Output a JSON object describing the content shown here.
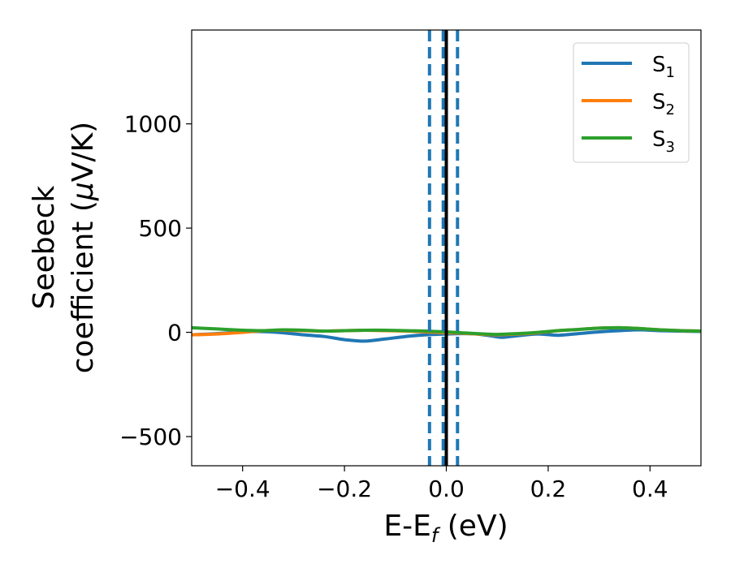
{
  "chart_data": {
    "type": "line",
    "title": "",
    "xlabel": {
      "main": "E-E",
      "sub": "f",
      "suffix": " (eV)"
    },
    "ylabel": {
      "line1": "Seebeck",
      "line2_prefix": "coefficient  (",
      "mu": "μ",
      "line2_suffix": "V/K)"
    },
    "xlim": [
      -0.5,
      0.5
    ],
    "ylim": [
      -640,
      1450
    ],
    "xticks": [
      {
        "value": -0.4,
        "label": "−0.4"
      },
      {
        "value": -0.2,
        "label": "−0.2"
      },
      {
        "value": 0.0,
        "label": "0.0"
      },
      {
        "value": 0.2,
        "label": "0.2"
      },
      {
        "value": 0.4,
        "label": "0.4"
      }
    ],
    "yticks": [
      {
        "value": -500,
        "label": "−500"
      },
      {
        "value": 0,
        "label": "0"
      },
      {
        "value": 500,
        "label": "500"
      },
      {
        "value": 1000,
        "label": "1000"
      }
    ],
    "grid": false,
    "legend_position": "top-right",
    "series": [
      {
        "name": "S",
        "sub": "1",
        "color": "#1f77b4",
        "x": [
          -0.5,
          -0.45,
          -0.4,
          -0.37,
          -0.33,
          -0.28,
          -0.24,
          -0.2,
          -0.16,
          -0.12,
          -0.08,
          -0.04,
          0.0,
          0.03,
          0.06,
          0.09,
          0.11,
          0.14,
          0.18,
          0.22,
          0.26,
          0.3,
          0.34,
          0.38,
          0.42,
          0.46,
          0.5
        ],
        "y": [
          -12,
          -6,
          2,
          4,
          0,
          -12,
          -20,
          -35,
          -42,
          -32,
          -20,
          -12,
          -8,
          -6,
          -8,
          -18,
          -24,
          -16,
          -8,
          -14,
          -6,
          2,
          8,
          12,
          8,
          6,
          4
        ]
      },
      {
        "name": "S",
        "sub": "2",
        "color": "#ff7f0e",
        "x": [
          -0.5,
          -0.45,
          -0.4,
          -0.37,
          -0.33,
          -0.28,
          -0.24,
          -0.2,
          -0.16,
          -0.12,
          -0.08,
          -0.04,
          0.0,
          0.03,
          0.06,
          0.1,
          0.14,
          0.18,
          0.22,
          0.26,
          0.3,
          0.34,
          0.38,
          0.42,
          0.46,
          0.5
        ],
        "y": [
          -12,
          -8,
          0,
          6,
          10,
          8,
          6,
          8,
          10,
          8,
          6,
          2,
          -2,
          -4,
          -8,
          -12,
          -8,
          -2,
          8,
          14,
          20,
          22,
          18,
          12,
          8,
          6
        ]
      },
      {
        "name": "S",
        "sub": "3",
        "color": "#2ca02c",
        "x": [
          -0.5,
          -0.45,
          -0.4,
          -0.36,
          -0.32,
          -0.28,
          -0.24,
          -0.2,
          -0.16,
          -0.12,
          -0.08,
          -0.04,
          0.0,
          0.03,
          0.06,
          0.1,
          0.14,
          0.18,
          0.22,
          0.26,
          0.3,
          0.34,
          0.38,
          0.42,
          0.46,
          0.5
        ],
        "y": [
          22,
          16,
          10,
          8,
          12,
          10,
          6,
          8,
          10,
          10,
          8,
          6,
          2,
          -2,
          -6,
          -10,
          -6,
          0,
          8,
          14,
          20,
          22,
          18,
          12,
          8,
          6
        ]
      }
    ],
    "vlines": [
      {
        "x": -0.033,
        "style": "dashed",
        "color": "#1f77b4"
      },
      {
        "x": -0.006,
        "style": "dashed",
        "color": "#1f77b4"
      },
      {
        "x": 0.022,
        "style": "dashed",
        "color": "#1f77b4"
      },
      {
        "x": 0.0,
        "style": "solid",
        "color": "#000000"
      }
    ]
  }
}
